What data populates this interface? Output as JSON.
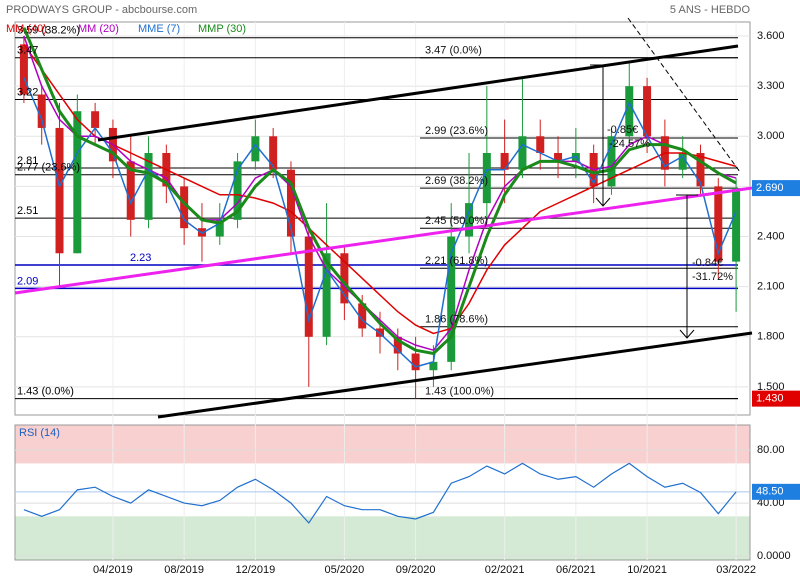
{
  "header": {
    "title": "PRODWAYS GROUP - abcbourse.com",
    "period": "5 ANS - HEBDO"
  },
  "chart_data": [
    {
      "type": "candlestick",
      "categories": [
        null,
        null,
        null,
        null,
        null,
        "04/2019",
        null,
        null,
        null,
        "08/2019",
        null,
        null,
        null,
        "12/2019",
        null,
        null,
        null,
        null,
        "05/2020",
        null,
        null,
        null,
        "09/2020",
        null,
        null,
        null,
        null,
        "02/2021",
        null,
        null,
        null,
        "06/2021",
        null,
        null,
        null,
        "10/2021",
        null,
        null,
        null,
        null,
        "03/2022"
      ],
      "open": [
        3.55,
        3.25,
        3.05,
        2.3,
        3.15,
        3.05,
        2.85,
        2.5,
        2.9,
        2.7,
        2.45,
        2.4,
        2.5,
        2.85,
        3.0,
        2.8,
        2.4,
        1.8,
        2.3,
        2.0,
        1.85,
        1.8,
        1.7,
        1.6,
        1.65,
        2.4,
        2.6,
        2.9,
        2.8,
        3.0,
        2.9,
        2.85,
        2.9,
        2.7,
        3.0,
        3.3,
        3.0,
        2.8,
        2.9,
        2.7,
        2.25
      ],
      "high": [
        3.6,
        3.3,
        3.2,
        3.25,
        3.2,
        3.1,
        3.0,
        3.0,
        2.95,
        2.75,
        2.6,
        2.6,
        2.9,
        3.1,
        3.05,
        2.85,
        2.45,
        2.6,
        2.35,
        2.05,
        1.95,
        1.85,
        1.8,
        1.75,
        2.6,
        2.9,
        3.3,
        3.1,
        3.35,
        3.1,
        3.0,
        3.05,
        2.95,
        3.05,
        3.45,
        3.35,
        3.1,
        3.0,
        2.95,
        2.75,
        2.75
      ],
      "low": [
        3.2,
        2.95,
        2.1,
        2.3,
        2.95,
        2.75,
        2.4,
        2.45,
        2.6,
        2.35,
        2.25,
        2.35,
        2.45,
        2.8,
        2.75,
        2.3,
        1.5,
        1.75,
        1.9,
        1.8,
        1.7,
        1.6,
        1.43,
        1.5,
        1.6,
        2.3,
        2.5,
        2.6,
        2.75,
        2.8,
        2.75,
        2.75,
        2.6,
        2.65,
        2.95,
        2.9,
        2.7,
        2.75,
        2.65,
        2.15,
        1.95
      ],
      "close": [
        3.25,
        3.05,
        2.3,
        3.15,
        3.05,
        2.85,
        2.5,
        2.9,
        2.7,
        2.45,
        2.4,
        2.5,
        2.85,
        3.0,
        2.8,
        2.4,
        1.8,
        2.3,
        2.0,
        1.85,
        1.8,
        1.7,
        1.6,
        1.65,
        2.4,
        2.6,
        2.9,
        2.8,
        3.0,
        2.9,
        2.85,
        2.9,
        2.7,
        3.0,
        3.3,
        3.0,
        2.8,
        2.9,
        2.7,
        2.25,
        2.69
      ],
      "up_color": "#1a9a3a",
      "down_color": "#d02020",
      "series": [
        {
          "name": "MM (40)",
          "color": "#e00000",
          "values": [
            3.55,
            3.4,
            3.25,
            3.1,
            3.0,
            2.95,
            2.9,
            2.85,
            2.8,
            2.75,
            2.7,
            2.65,
            2.65,
            2.63,
            2.6,
            2.55,
            2.45,
            2.35,
            2.25,
            2.15,
            2.05,
            1.95,
            1.87,
            1.82,
            1.85,
            2.0,
            2.2,
            2.35,
            2.45,
            2.55,
            2.6,
            2.65,
            2.7,
            2.75,
            2.8,
            2.85,
            2.9,
            2.9,
            2.88,
            2.85,
            2.82
          ]
        },
        {
          "name": "MM (20)",
          "color": "#b000c0",
          "values": [
            3.6,
            3.3,
            3.1,
            3.0,
            3.0,
            2.95,
            2.85,
            2.8,
            2.75,
            2.6,
            2.5,
            2.5,
            2.6,
            2.75,
            2.8,
            2.7,
            2.4,
            2.2,
            2.1,
            2.0,
            1.9,
            1.8,
            1.75,
            1.72,
            1.85,
            2.2,
            2.5,
            2.7,
            2.8,
            2.85,
            2.85,
            2.85,
            2.8,
            2.82,
            2.95,
            3.0,
            2.95,
            2.92,
            2.85,
            2.78,
            2.75
          ]
        },
        {
          "name": "MME (7)",
          "color": "#1f6fd0",
          "values": [
            3.35,
            3.1,
            2.7,
            2.9,
            3.05,
            2.9,
            2.6,
            2.8,
            2.72,
            2.5,
            2.42,
            2.48,
            2.8,
            2.95,
            2.82,
            2.45,
            1.9,
            2.2,
            2.05,
            1.9,
            1.82,
            1.72,
            1.62,
            1.65,
            2.3,
            2.55,
            2.8,
            2.8,
            2.95,
            2.9,
            2.85,
            2.88,
            2.72,
            2.95,
            3.2,
            3.0,
            2.82,
            2.88,
            2.72,
            2.3,
            2.55
          ]
        },
        {
          "name": "MMP (30)",
          "color": "#1a8a1a",
          "values": [
            3.65,
            3.4,
            3.15,
            3.0,
            2.95,
            2.9,
            2.8,
            2.78,
            2.72,
            2.6,
            2.5,
            2.48,
            2.55,
            2.7,
            2.8,
            2.72,
            2.45,
            2.25,
            2.12,
            2.0,
            1.88,
            1.78,
            1.72,
            1.7,
            1.8,
            2.1,
            2.4,
            2.65,
            2.8,
            2.85,
            2.85,
            2.82,
            2.78,
            2.8,
            2.92,
            2.95,
            2.95,
            2.92,
            2.85,
            2.78,
            2.72
          ]
        }
      ],
      "ylim": [
        1.332,
        3.684
      ],
      "yticks": [
        {
          "value": 1.5,
          "label": "1.500"
        },
        {
          "value": 1.8,
          "label": "1.800"
        },
        {
          "value": 2.1,
          "label": "2.100"
        },
        {
          "value": 2.4,
          "label": "2.400"
        },
        {
          "value": 2.7,
          "label": "2.700"
        },
        {
          "value": 3.0,
          "label": "3.000"
        },
        {
          "value": 3.3,
          "label": "3.300"
        },
        {
          "value": 3.6,
          "label": "3.600"
        }
      ],
      "grid": true,
      "levels": [
        {
          "value": 3.59,
          "label": "3.59  (38.2%)",
          "color": "#000000"
        },
        {
          "value": 3.47,
          "label": "3.47",
          "color": "#000000"
        },
        {
          "value": 3.22,
          "label": "3.22",
          "color": "#000000"
        },
        {
          "value": 2.81,
          "label": "2.81",
          "color": "#000000"
        },
        {
          "value": 2.77,
          "label": "2.77  (23.6%)",
          "color": "#000000"
        },
        {
          "value": 2.51,
          "label": "2.51",
          "color": "#000000"
        },
        {
          "value": 2.23,
          "label": "2.23",
          "color": "#0000c0"
        },
        {
          "value": 2.09,
          "label": "2.09",
          "color": "#0000c0"
        },
        {
          "value": 1.43,
          "label": "1.43  (0.0%)",
          "color": "#000000"
        }
      ],
      "fib_levels": [
        {
          "value": 3.47,
          "label": "3.47  (0.0%)"
        },
        {
          "value": 2.99,
          "label": "2.99  (23.6%)"
        },
        {
          "value": 2.69,
          "label": "2.69  (38.2%)"
        },
        {
          "value": 2.45,
          "label": "2.45  (50.0%)"
        },
        {
          "value": 2.21,
          "label": "2.21  (61.8%)"
        },
        {
          "value": 1.86,
          "label": "1.86  (78.6%)"
        },
        {
          "value": 1.43,
          "label": "1.43  (100.0%)"
        }
      ],
      "price_tags": [
        {
          "value": 2.69,
          "label": "2.690",
          "color": "#1f7fe0"
        },
        {
          "value": 1.43,
          "label": "1.430",
          "color": "#e00000"
        }
      ],
      "annotations": [
        "-0.85€",
        "-24.57%",
        "-0.84€",
        "-31.72%"
      ]
    },
    {
      "type": "line",
      "title": "RSI (14)",
      "color": "#2070d0",
      "values": [
        35,
        30,
        35,
        50,
        52,
        45,
        40,
        50,
        45,
        40,
        38,
        42,
        52,
        58,
        50,
        40,
        25,
        45,
        38,
        35,
        35,
        30,
        28,
        33,
        55,
        60,
        68,
        62,
        70,
        62,
        58,
        60,
        52,
        62,
        70,
        60,
        52,
        55,
        48,
        32,
        48.5
      ],
      "last": {
        "value": 48.5,
        "label": "48.50"
      },
      "bands": [
        {
          "from": 70,
          "to": 99,
          "color": "#f8d0d0"
        },
        {
          "from": -3,
          "to": 30,
          "color": "#d4ead4"
        }
      ],
      "ylim": [
        -3,
        99
      ],
      "yticks": [
        {
          "value": 0,
          "label": "0.0000"
        },
        {
          "value": 40,
          "label": "40.00"
        },
        {
          "value": 80,
          "label": "80.00"
        }
      ]
    }
  ]
}
